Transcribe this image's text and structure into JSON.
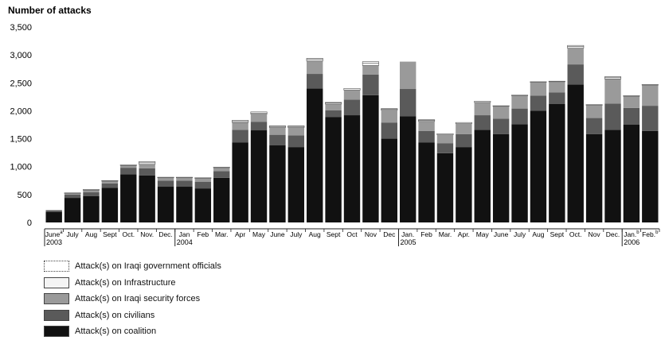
{
  "chart_data": {
    "type": "bar",
    "stacked": true,
    "title": "Number of attacks",
    "ylabel": "Number of attacks",
    "xlabel": "",
    "ylim": [
      0,
      3500
    ],
    "yticks": [
      "3,500",
      "3,000",
      "2,500",
      "2,000",
      "1,500",
      "1,000",
      "500",
      "0"
    ],
    "ytick_values": [
      3500,
      3000,
      2500,
      2000,
      1500,
      1000,
      500,
      0
    ],
    "grid": false,
    "legend_position": "bottom-left",
    "categories": [
      "June",
      "July",
      "Aug",
      "Sept",
      "Oct.",
      "Nov.",
      "Dec.",
      "Jan",
      "Feb",
      "Mar.",
      "Apr",
      "May",
      "June",
      "July",
      "Aug",
      "Sept",
      "Oct",
      "Nov",
      "Dec",
      "Jan.",
      "Feb",
      "Mar.",
      "Apr.",
      "May",
      "June",
      "July",
      "Aug",
      "Sept",
      "Oct.",
      "Nov",
      "Dec.",
      "Jan.",
      "Feb."
    ],
    "category_superscripts": [
      "a",
      "",
      "",
      "",
      "",
      "",
      "",
      "",
      "",
      "",
      "",
      "",
      "",
      "",
      "",
      "",
      "",
      "",
      "",
      "",
      "",
      "",
      "",
      "",
      "",
      "",
      "",
      "",
      "",
      "",
      "",
      "b",
      "b"
    ],
    "year_labels": [
      {
        "text": "2003",
        "index": 0
      },
      {
        "text": "2004",
        "index": 7
      },
      {
        "text": "2005",
        "index": 19
      },
      {
        "text": "2006",
        "index": 31
      }
    ],
    "series": [
      {
        "name": "Attack(s) on coalition",
        "color": "#111111",
        "values": [
          190,
          440,
          470,
          620,
          860,
          840,
          640,
          640,
          610,
          800,
          1430,
          1650,
          1380,
          1350,
          2400,
          1890,
          1920,
          2280,
          1500,
          1900,
          1430,
          1240,
          1350,
          1660,
          1580,
          1760,
          2000,
          2120,
          2470,
          1580,
          1660,
          1750,
          1640
        ]
      },
      {
        "name": "Attack(s) on civilians",
        "color": "#5a5a5a",
        "values": [
          25,
          60,
          70,
          80,
          120,
          130,
          110,
          110,
          120,
          120,
          230,
          150,
          190,
          210,
          260,
          120,
          280,
          370,
          290,
          490,
          210,
          180,
          230,
          260,
          280,
          280,
          270,
          210,
          360,
          290,
          470,
          300,
          450
        ]
      },
      {
        "name": "Attack(s) on Iraqi security forces",
        "color": "#9a9a9a",
        "values": [
          10,
          20,
          40,
          40,
          40,
          70,
          50,
          50,
          60,
          60,
          130,
          140,
          130,
          140,
          230,
          110,
          170,
          160,
          220,
          490,
          170,
          150,
          190,
          230,
          220,
          230,
          240,
          190,
          290,
          230,
          440,
          210,
          370
        ]
      },
      {
        "name": "Attack(s) on Infrastructure",
        "color": "#f4f4f4",
        "values": [
          0,
          10,
          10,
          10,
          10,
          30,
          10,
          10,
          10,
          10,
          20,
          20,
          20,
          20,
          30,
          20,
          30,
          40,
          20,
          0,
          20,
          20,
          20,
          20,
          10,
          10,
          10,
          10,
          30,
          10,
          30,
          10,
          10
        ]
      },
      {
        "name": "Attack(s) on Iraqi government officials",
        "color": "#ffffff",
        "values": [
          0,
          0,
          0,
          0,
          0,
          20,
          0,
          0,
          0,
          0,
          20,
          20,
          10,
          10,
          20,
          10,
          0,
          30,
          10,
          0,
          10,
          0,
          0,
          0,
          0,
          0,
          0,
          0,
          20,
          0,
          10,
          0,
          0
        ]
      }
    ]
  }
}
